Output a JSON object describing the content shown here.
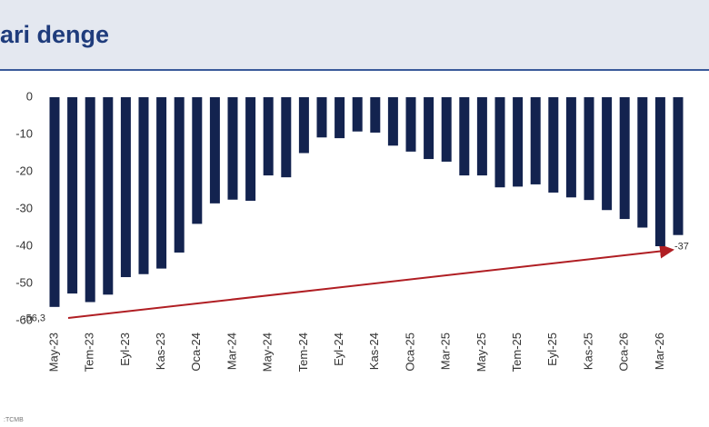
{
  "chart_data": {
    "type": "bar",
    "title": "ari denge",
    "source": ":TCMB",
    "categories": [
      "May-23",
      null,
      "Tem-23",
      null,
      "Eyl-23",
      null,
      "Kas-23",
      null,
      "Oca-24",
      null,
      "Mar-24",
      null,
      "May-24",
      null,
      "Tem-24",
      null,
      "Eyl-24",
      null,
      "Kas-24",
      null,
      "Oca-25",
      null,
      "Mar-25",
      null,
      "May-25",
      null,
      "Tem-25",
      null,
      "Eyl-25",
      null,
      "Kas-25",
      null,
      "Oca-26",
      null,
      "Mar-26",
      null
    ],
    "values": [
      -56.3,
      -52.7,
      -55,
      -53,
      -48.3,
      -47.5,
      -46,
      -41.7,
      -34,
      -28.5,
      -27.5,
      -27.8,
      -21,
      -21.5,
      -15,
      -10.8,
      -11,
      -9.2,
      -9.5,
      -13,
      -14.6,
      -16.6,
      -17.3,
      -21,
      -21,
      -24.2,
      -24,
      -23.4,
      -25.6,
      -26.9,
      -27.6,
      -30.3,
      -32.7,
      -35,
      -40,
      -37
    ],
    "value_labels": [
      "-56,3",
      null,
      null,
      null,
      null,
      null,
      null,
      null,
      null,
      null,
      null,
      null,
      null,
      null,
      null,
      null,
      null,
      null,
      null,
      null,
      null,
      null,
      null,
      null,
      null,
      null,
      null,
      null,
      null,
      null,
      null,
      null,
      null,
      null,
      null,
      "-37"
    ],
    "color": "#13234f",
    "ylim": [
      -60,
      0
    ],
    "yticks": [
      -60,
      -50,
      -40,
      -30,
      -20,
      -10,
      0
    ],
    "grid": false
  }
}
